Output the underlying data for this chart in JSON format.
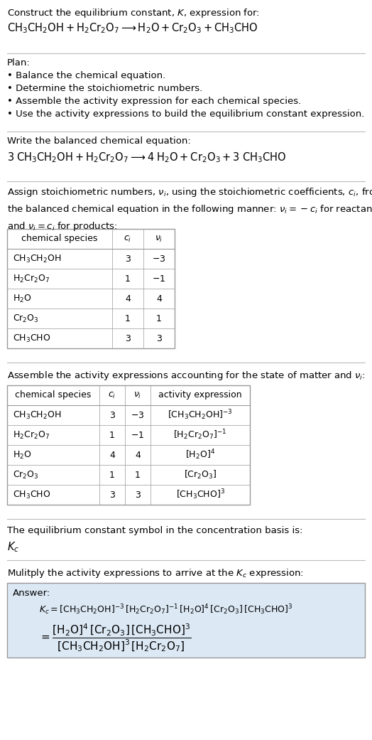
{
  "bg_color": "#ffffff",
  "text_color": "#000000",
  "title_line1": "Construct the equilibrium constant, $K$, expression for:",
  "title_line2": "$\\mathrm{CH_3CH_2OH + H_2Cr_2O_7 \\longrightarrow H_2O + Cr_2O_3 + CH_3CHO}$",
  "plan_header": "Plan:",
  "plan_items": [
    "• Balance the chemical equation.",
    "• Determine the stoichiometric numbers.",
    "• Assemble the activity expression for each chemical species.",
    "• Use the activity expressions to build the equilibrium constant expression."
  ],
  "balanced_header": "Write the balanced chemical equation:",
  "balanced_eq": "$\\mathrm{3\\;CH_3CH_2OH + H_2Cr_2O_7 \\longrightarrow 4\\;H_2O + Cr_2O_3 + 3\\;CH_3CHO}$",
  "stoich_header": "Assign stoichiometric numbers, $\\nu_i$, using the stoichiometric coefficients, $c_i$, from\nthe balanced chemical equation in the following manner: $\\nu_i = -c_i$ for reactants\nand $\\nu_i = c_i$ for products:",
  "table1_cols": [
    "chemical species",
    "$c_i$",
    "$\\nu_i$"
  ],
  "table1_data": [
    [
      "$\\mathrm{CH_3CH_2OH}$",
      "3",
      "$-3$"
    ],
    [
      "$\\mathrm{H_2Cr_2O_7}$",
      "1",
      "$-1$"
    ],
    [
      "$\\mathrm{H_2O}$",
      "4",
      "4"
    ],
    [
      "$\\mathrm{Cr_2O_3}$",
      "1",
      "1"
    ],
    [
      "$\\mathrm{CH_3CHO}$",
      "3",
      "3"
    ]
  ],
  "activity_header": "Assemble the activity expressions accounting for the state of matter and $\\nu_i$:",
  "table2_cols": [
    "chemical species",
    "$c_i$",
    "$\\nu_i$",
    "activity expression"
  ],
  "table2_data": [
    [
      "$\\mathrm{CH_3CH_2OH}$",
      "3",
      "$-3$",
      "$[\\mathrm{CH_3CH_2OH}]^{-3}$"
    ],
    [
      "$\\mathrm{H_2Cr_2O_7}$",
      "1",
      "$-1$",
      "$[\\mathrm{H_2Cr_2O_7}]^{-1}$"
    ],
    [
      "$\\mathrm{H_2O}$",
      "4",
      "4",
      "$[\\mathrm{H_2O}]^{4}$"
    ],
    [
      "$\\mathrm{Cr_2O_3}$",
      "1",
      "1",
      "$[\\mathrm{Cr_2O_3}]$"
    ],
    [
      "$\\mathrm{CH_3CHO}$",
      "3",
      "3",
      "$[\\mathrm{CH_3CHO}]^{3}$"
    ]
  ],
  "kc_header": "The equilibrium constant symbol in the concentration basis is:",
  "kc_symbol": "$K_c$",
  "multiply_header": "Mulitply the activity expressions to arrive at the $K_c$ expression:",
  "answer_line1": "$K_c = [\\mathrm{CH_3CH_2OH}]^{-3}\\,[\\mathrm{H_2Cr_2O_7}]^{-1}\\,[\\mathrm{H_2O}]^{4}\\,[\\mathrm{Cr_2O_3}]\\,[\\mathrm{CH_3CHO}]^{3}$",
  "answer_line2": "$= \\dfrac{[\\mathrm{H_2O}]^{4}\\,[\\mathrm{Cr_2O_3}]\\,[\\mathrm{CH_3CHO}]^{3}}{[\\mathrm{CH_3CH_2OH}]^{3}\\,[\\mathrm{H_2Cr_2O_7}]}$",
  "answer_box_color": "#dce9f5",
  "table_border_color": "#999999",
  "separator_color": "#bbbbbb"
}
